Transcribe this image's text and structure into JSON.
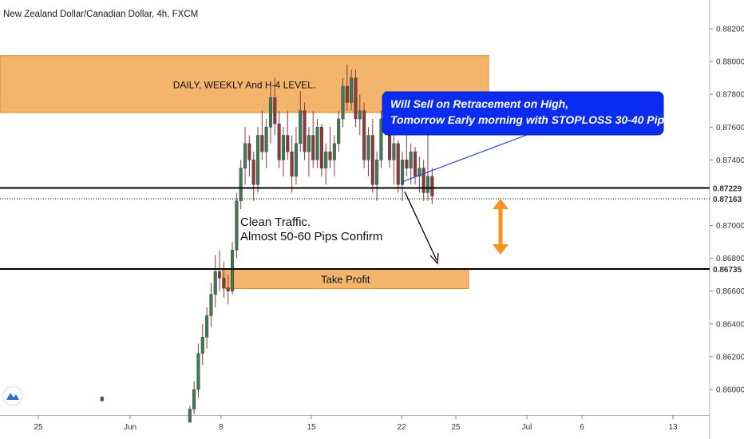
{
  "chart_data": {
    "type": "candlestick",
    "title": "New Zealand Dollar/Canadian Dollar, 4h, FXCM",
    "ylim": [
      0.8585,
      0.8836
    ],
    "xlim": [
      0,
      38
    ],
    "price_ticks": [
      "0.88200",
      "0.88000",
      "0.87800",
      "0.87600",
      "0.87400",
      "0.87000",
      "0.86800",
      "0.86600",
      "0.86400",
      "0.86200",
      "0.86000"
    ],
    "date_ticks": [
      {
        "label": "25",
        "x": 1
      },
      {
        "label": "Jun",
        "x": 8
      },
      {
        "label": "8",
        "x": 15
      },
      {
        "label": "15",
        "x": 22
      },
      {
        "label": "22",
        "x": 29
      },
      {
        "label": "25",
        "x": 32
      },
      {
        "label": "Jul",
        "x": 37
      },
      {
        "label": "6",
        "x": 41
      },
      {
        "label": "13",
        "x": 48
      }
    ],
    "horizontal_lines": [
      {
        "price": 0.87229,
        "label": "0.87229",
        "style": "solid",
        "color": "#000000"
      },
      {
        "price": 0.87163,
        "label": "0.87163",
        "style": "dotted",
        "color": "#000000"
      },
      {
        "price": 0.86735,
        "label": "0.86735",
        "style": "solid",
        "color": "#000000"
      }
    ],
    "zones": [
      {
        "label": "DAILY, WEEKLY And H-4 LEVEL.",
        "price_top": 0.88036,
        "price_bottom": 0.87689,
        "x_from": 0,
        "x_to": 34.5,
        "color": "#f0a44b"
      },
      {
        "label": "Take Profit",
        "price_top": 0.86735,
        "price_bottom": 0.86615,
        "x_from": 13.5,
        "x_to": 33,
        "color": "#f0a44b"
      }
    ],
    "annotations": {
      "callout": [
        "Will Sell on Retracement on High,",
        "Tomorrow Early morning with STOPLOSS 30-40 Pips"
      ],
      "note": [
        "Clean Traffic.",
        "Almost 50-60 Pips Confirm"
      ]
    },
    "candles": [
      [
        5.0,
        0.85955,
        0.85955,
        0.8593,
        0.8593
      ],
      [
        11.2,
        0.858,
        0.859,
        0.858,
        0.8588
      ],
      [
        11.5,
        0.8588,
        0.8605,
        0.8585,
        0.86
      ],
      [
        11.8,
        0.86,
        0.8628,
        0.8595,
        0.8622
      ],
      [
        12.1,
        0.8622,
        0.864,
        0.8615,
        0.8632
      ],
      [
        12.4,
        0.8632,
        0.865,
        0.8625,
        0.8645
      ],
      [
        12.7,
        0.8645,
        0.8665,
        0.8638,
        0.8658
      ],
      [
        13.0,
        0.8658,
        0.8682,
        0.865,
        0.8672
      ],
      [
        13.3,
        0.8672,
        0.8685,
        0.866,
        0.8668
      ],
      [
        13.6,
        0.8668,
        0.8678,
        0.8656,
        0.8662
      ],
      [
        13.9,
        0.8662,
        0.867,
        0.8652,
        0.866
      ],
      [
        14.2,
        0.866,
        0.869,
        0.8658,
        0.8685
      ],
      [
        14.5,
        0.8685,
        0.872,
        0.868,
        0.8715
      ],
      [
        14.8,
        0.8715,
        0.874,
        0.871,
        0.8735
      ],
      [
        15.1,
        0.8735,
        0.876,
        0.8725,
        0.875
      ],
      [
        15.4,
        0.875,
        0.8755,
        0.873,
        0.874
      ],
      [
        15.7,
        0.874,
        0.8745,
        0.8715,
        0.8725
      ],
      [
        16.0,
        0.8725,
        0.876,
        0.872,
        0.8755
      ],
      [
        16.3,
        0.8755,
        0.877,
        0.874,
        0.8745
      ],
      [
        16.6,
        0.8745,
        0.8765,
        0.8735,
        0.876
      ],
      [
        16.9,
        0.876,
        0.8785,
        0.875,
        0.8778
      ],
      [
        17.2,
        0.8778,
        0.879,
        0.8755,
        0.8762
      ],
      [
        17.5,
        0.8762,
        0.877,
        0.8735,
        0.874
      ],
      [
        17.8,
        0.874,
        0.876,
        0.873,
        0.8755
      ],
      [
        18.1,
        0.8755,
        0.877,
        0.874,
        0.8745
      ],
      [
        18.4,
        0.8745,
        0.8755,
        0.872,
        0.873
      ],
      [
        18.7,
        0.873,
        0.876,
        0.8725,
        0.875
      ],
      [
        19.0,
        0.875,
        0.8782,
        0.8745,
        0.877
      ],
      [
        19.3,
        0.877,
        0.8775,
        0.874,
        0.8745
      ],
      [
        19.6,
        0.8745,
        0.876,
        0.873,
        0.8755
      ],
      [
        19.9,
        0.8755,
        0.877,
        0.8735,
        0.874
      ],
      [
        20.2,
        0.874,
        0.8765,
        0.8735,
        0.876
      ],
      [
        20.5,
        0.876,
        0.8762,
        0.873,
        0.8735
      ],
      [
        20.8,
        0.8735,
        0.875,
        0.8725,
        0.8745
      ],
      [
        21.1,
        0.8745,
        0.876,
        0.8735,
        0.874
      ],
      [
        21.4,
        0.874,
        0.8755,
        0.873,
        0.875
      ],
      [
        21.7,
        0.875,
        0.877,
        0.8745,
        0.8765
      ],
      [
        22.0,
        0.8765,
        0.879,
        0.876,
        0.8785
      ],
      [
        22.3,
        0.8785,
        0.8798,
        0.877,
        0.8775
      ],
      [
        22.6,
        0.8775,
        0.8795,
        0.877,
        0.879
      ],
      [
        22.9,
        0.879,
        0.8795,
        0.876,
        0.8765
      ],
      [
        23.2,
        0.8765,
        0.878,
        0.8755,
        0.877
      ],
      [
        23.5,
        0.877,
        0.8775,
        0.8735,
        0.874
      ],
      [
        23.8,
        0.874,
        0.876,
        0.873,
        0.8755
      ],
      [
        24.1,
        0.8755,
        0.8765,
        0.872,
        0.8725
      ],
      [
        24.4,
        0.8725,
        0.8745,
        0.8715,
        0.874
      ],
      [
        24.7,
        0.874,
        0.877,
        0.8735,
        0.8765
      ],
      [
        25.0,
        0.8765,
        0.8782,
        0.8755,
        0.876
      ],
      [
        25.3,
        0.876,
        0.8765,
        0.8735,
        0.874
      ],
      [
        25.6,
        0.874,
        0.8755,
        0.8725,
        0.875
      ],
      [
        25.9,
        0.875,
        0.8752,
        0.872,
        0.8725
      ],
      [
        26.2,
        0.8725,
        0.8745,
        0.8715,
        0.874
      ],
      [
        26.5,
        0.874,
        0.8755,
        0.873,
        0.8735
      ],
      [
        26.8,
        0.8735,
        0.875,
        0.8725,
        0.8745
      ],
      [
        27.1,
        0.8745,
        0.8748,
        0.8725,
        0.873
      ],
      [
        27.4,
        0.873,
        0.8742,
        0.872,
        0.8735
      ],
      [
        27.7,
        0.8735,
        0.874,
        0.8715,
        0.872
      ],
      [
        28.0,
        0.872,
        0.8755,
        0.8715,
        0.873
      ],
      [
        28.3,
        0.873,
        0.8735,
        0.8713,
        0.8718
      ]
    ]
  }
}
